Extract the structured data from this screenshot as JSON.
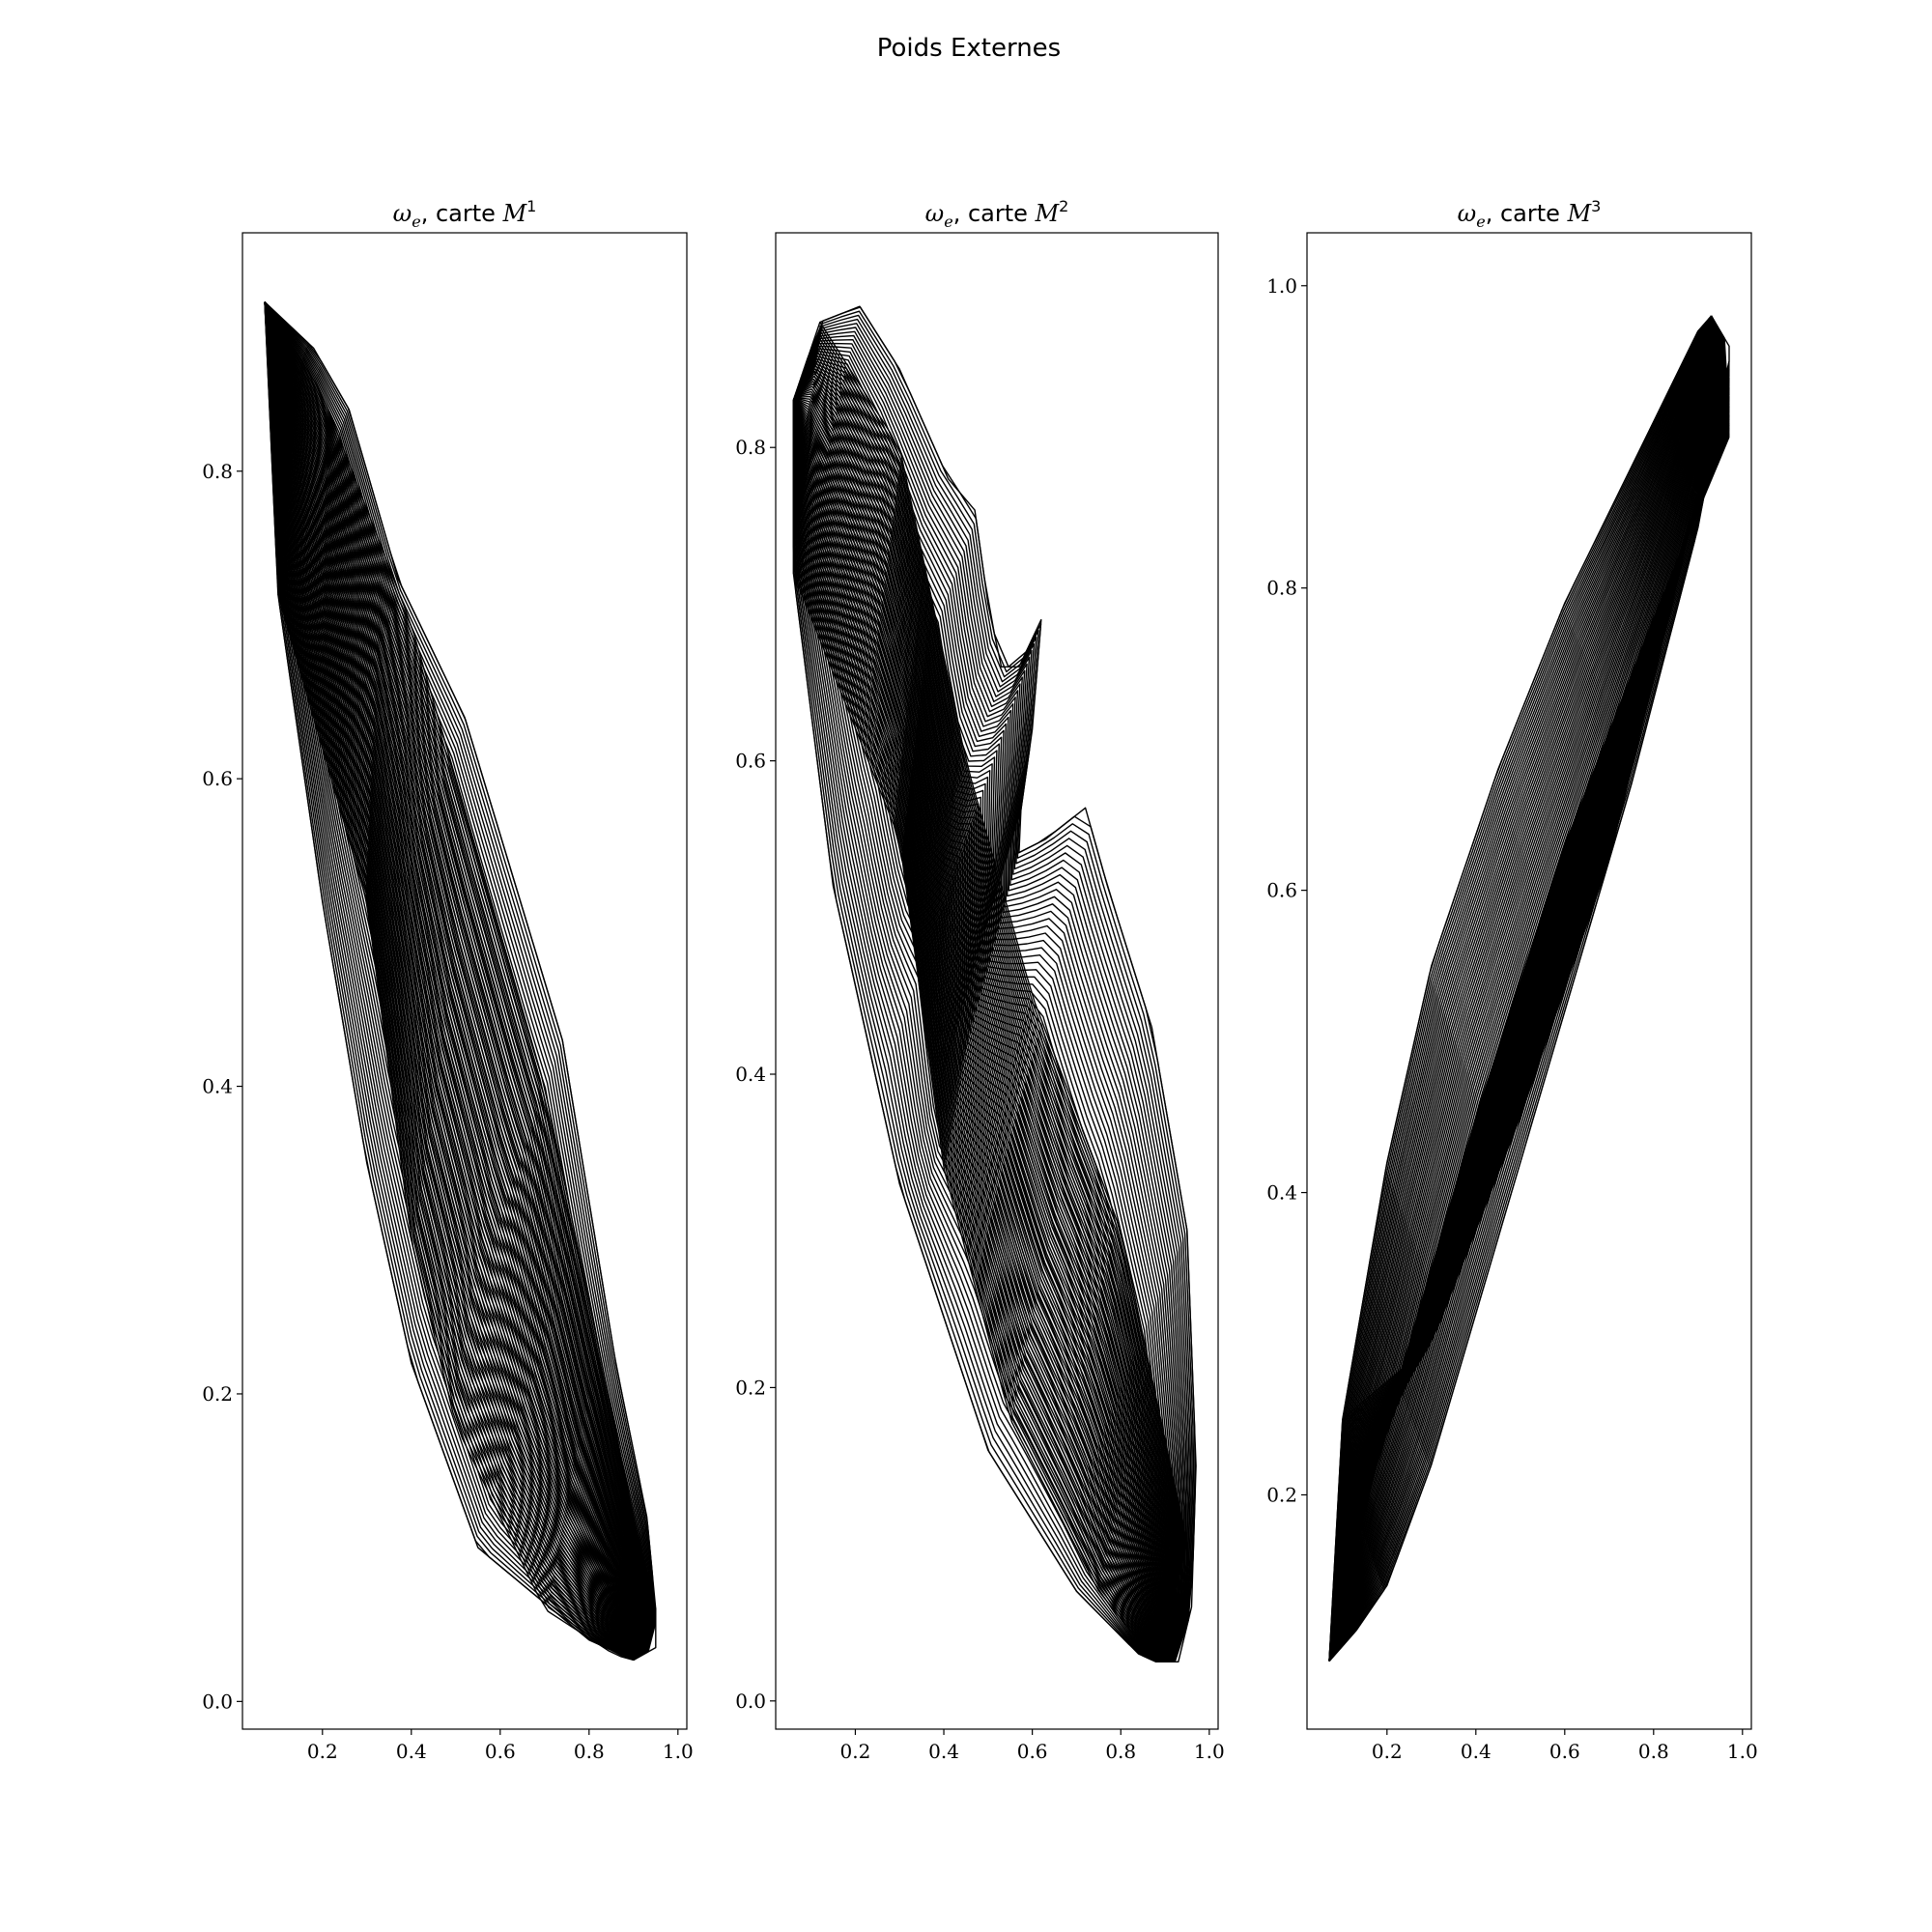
{
  "figure": {
    "suptitle": "Poids Externes"
  },
  "chart_data": [
    {
      "type": "line",
      "title": {
        "symbol": "ω",
        "sub": "e",
        "text": ", carte ",
        "map": "M",
        "sup": "1"
      },
      "xlim": [
        0.02,
        1.02
      ],
      "ylim": [
        -0.018,
        0.955
      ],
      "xticks": [
        0.2,
        0.4,
        0.6,
        0.8,
        1.0
      ],
      "yticks": [
        0.0,
        0.2,
        0.4,
        0.6,
        0.8
      ],
      "xtick_labels": [
        "0.2",
        "0.4",
        "0.6",
        "0.8",
        "1.0"
      ],
      "ytick_labels": [
        "0.0",
        "0.2",
        "0.4",
        "0.6",
        "0.8"
      ],
      "grid": false,
      "mesh": {
        "left_edge": [
          [
            0.07,
            0.91
          ],
          [
            0.1,
            0.72
          ],
          [
            0.2,
            0.52
          ],
          [
            0.3,
            0.35
          ],
          [
            0.4,
            0.22
          ],
          [
            0.55,
            0.1
          ],
          [
            0.8,
            0.04
          ],
          [
            0.9,
            0.027
          ]
        ],
        "right_edge": [
          [
            0.07,
            0.91
          ],
          [
            0.18,
            0.88
          ],
          [
            0.26,
            0.84
          ],
          [
            0.37,
            0.73
          ],
          [
            0.52,
            0.64
          ],
          [
            0.74,
            0.43
          ],
          [
            0.86,
            0.22
          ],
          [
            0.93,
            0.12
          ],
          [
            0.95,
            0.06
          ],
          [
            0.95,
            0.035
          ],
          [
            0.9,
            0.027
          ]
        ],
        "bottom_edge": [
          [
            0.1,
            0.72
          ],
          [
            0.3,
            0.52
          ],
          [
            0.4,
            0.3
          ],
          [
            0.5,
            0.18
          ],
          [
            0.7,
            0.06
          ],
          [
            0.86,
            0.03
          ],
          [
            0.9,
            0.027
          ]
        ],
        "top_edge": [
          [
            0.07,
            0.91
          ],
          [
            0.2,
            0.85
          ],
          [
            0.4,
            0.7
          ],
          [
            0.7,
            0.4
          ],
          [
            0.9,
            0.12
          ],
          [
            0.95,
            0.06
          ]
        ]
      }
    },
    {
      "type": "line",
      "title": {
        "symbol": "ω",
        "sub": "e",
        "text": ", carte ",
        "map": "M",
        "sup": "2"
      },
      "xlim": [
        0.02,
        1.02
      ],
      "ylim": [
        -0.018,
        0.937
      ],
      "xticks": [
        0.2,
        0.4,
        0.6,
        0.8,
        1.0
      ],
      "yticks": [
        0.0,
        0.2,
        0.4,
        0.6,
        0.8
      ],
      "xtick_labels": [
        "0.2",
        "0.4",
        "0.6",
        "0.8",
        "1.0"
      ],
      "ytick_labels": [
        "0.0",
        "0.2",
        "0.4",
        "0.6",
        "0.8"
      ],
      "grid": false,
      "mesh": {
        "left_edge": [
          [
            0.06,
            0.83
          ],
          [
            0.06,
            0.72
          ],
          [
            0.15,
            0.52
          ],
          [
            0.3,
            0.33
          ],
          [
            0.5,
            0.16
          ],
          [
            0.7,
            0.07
          ],
          [
            0.84,
            0.03
          ],
          [
            0.88,
            0.025
          ]
        ],
        "right_edge": [
          [
            0.06,
            0.83
          ],
          [
            0.12,
            0.88
          ],
          [
            0.21,
            0.89
          ],
          [
            0.3,
            0.85
          ],
          [
            0.41,
            0.78
          ],
          [
            0.47,
            0.76
          ],
          [
            0.5,
            0.7
          ],
          [
            0.53,
            0.66
          ],
          [
            0.57,
            0.66
          ],
          [
            0.62,
            0.69
          ],
          [
            0.6,
            0.62
          ],
          [
            0.56,
            0.54
          ],
          [
            0.63,
            0.55
          ],
          [
            0.72,
            0.57
          ],
          [
            0.77,
            0.52
          ],
          [
            0.87,
            0.43
          ],
          [
            0.95,
            0.3
          ],
          [
            0.97,
            0.15
          ],
          [
            0.96,
            0.06
          ],
          [
            0.93,
            0.025
          ],
          [
            0.88,
            0.025
          ]
        ],
        "bottom_edge": [
          [
            0.06,
            0.72
          ],
          [
            0.3,
            0.55
          ],
          [
            0.4,
            0.34
          ],
          [
            0.55,
            0.18
          ],
          [
            0.75,
            0.07
          ],
          [
            0.88,
            0.025
          ]
        ],
        "top_edge": [
          [
            0.12,
            0.88
          ],
          [
            0.3,
            0.8
          ],
          [
            0.45,
            0.6
          ],
          [
            0.6,
            0.45
          ],
          [
            0.8,
            0.3
          ],
          [
            0.95,
            0.1
          ]
        ]
      }
    },
    {
      "type": "line",
      "title": {
        "symbol": "ω",
        "sub": "e",
        "text": ", carte ",
        "map": "M",
        "sup": "3"
      },
      "xlim": [
        0.02,
        1.02
      ],
      "ylim": [
        0.045,
        1.035
      ],
      "xticks": [
        0.2,
        0.4,
        0.6,
        0.8,
        1.0
      ],
      "yticks": [
        0.2,
        0.4,
        0.6,
        0.8,
        1.0
      ],
      "xtick_labels": [
        "0.2",
        "0.4",
        "0.6",
        "0.8",
        "1.0"
      ],
      "ytick_labels": [
        "0.2",
        "0.4",
        "0.6",
        "0.8",
        "1.0"
      ],
      "grid": false,
      "mesh": {
        "left_edge": [
          [
            0.07,
            0.09
          ],
          [
            0.1,
            0.25
          ],
          [
            0.2,
            0.42
          ],
          [
            0.3,
            0.55
          ],
          [
            0.45,
            0.68
          ],
          [
            0.6,
            0.79
          ],
          [
            0.75,
            0.88
          ],
          [
            0.9,
            0.97
          ],
          [
            0.93,
            0.98
          ]
        ],
        "right_edge": [
          [
            0.07,
            0.09
          ],
          [
            0.13,
            0.11
          ],
          [
            0.2,
            0.14
          ],
          [
            0.3,
            0.22
          ],
          [
            0.45,
            0.37
          ],
          [
            0.6,
            0.52
          ],
          [
            0.75,
            0.67
          ],
          [
            0.9,
            0.84
          ],
          [
            0.97,
            0.95
          ],
          [
            0.97,
            0.96
          ],
          [
            0.93,
            0.98
          ]
        ],
        "bottom_edge": [
          [
            0.07,
            0.09
          ],
          [
            0.2,
            0.25
          ],
          [
            0.4,
            0.45
          ],
          [
            0.6,
            0.63
          ],
          [
            0.8,
            0.78
          ],
          [
            0.97,
            0.9
          ]
        ],
        "top_edge": [
          [
            0.1,
            0.25
          ],
          [
            0.3,
            0.3
          ],
          [
            0.5,
            0.45
          ],
          [
            0.7,
            0.62
          ],
          [
            0.85,
            0.8
          ],
          [
            0.97,
            0.95
          ]
        ]
      }
    }
  ]
}
